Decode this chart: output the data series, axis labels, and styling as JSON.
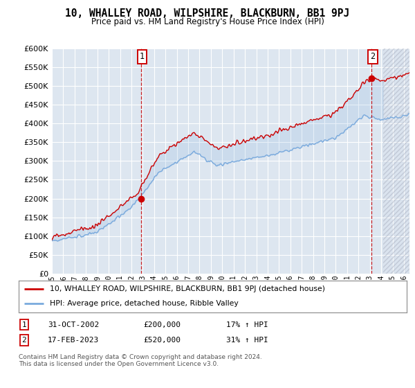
{
  "title": "10, WHALLEY ROAD, WILPSHIRE, BLACKBURN, BB1 9PJ",
  "subtitle": "Price paid vs. HM Land Registry's House Price Index (HPI)",
  "ylim": [
    0,
    600000
  ],
  "yticks": [
    0,
    50000,
    100000,
    150000,
    200000,
    250000,
    300000,
    350000,
    400000,
    450000,
    500000,
    550000,
    600000
  ],
  "xlim_start": 1995.0,
  "xlim_end": 2026.5,
  "bg_color": "#dde6f0",
  "grid_color": "#ffffff",
  "sale1_x": 2002.833,
  "sale1_y": 200000,
  "sale2_x": 2023.125,
  "sale2_y": 520000,
  "legend_label1": "10, WHALLEY ROAD, WILPSHIRE, BLACKBURN, BB1 9PJ (detached house)",
  "legend_label2": "HPI: Average price, detached house, Ribble Valley",
  "table_row1_num": "1",
  "table_row1_date": "31-OCT-2002",
  "table_row1_price": "£200,000",
  "table_row1_hpi": "17% ↑ HPI",
  "table_row2_num": "2",
  "table_row2_date": "17-FEB-2023",
  "table_row2_price": "£520,000",
  "table_row2_hpi": "31% ↑ HPI",
  "footer": "Contains HM Land Registry data © Crown copyright and database right 2024.\nThis data is licensed under the Open Government Licence v3.0.",
  "hatch_color": "#b0b8c8",
  "sale_color": "#cc0000",
  "hpi_color": "#7aaadd",
  "vline_color": "#cc0000",
  "future_cutoff": 2024.17
}
